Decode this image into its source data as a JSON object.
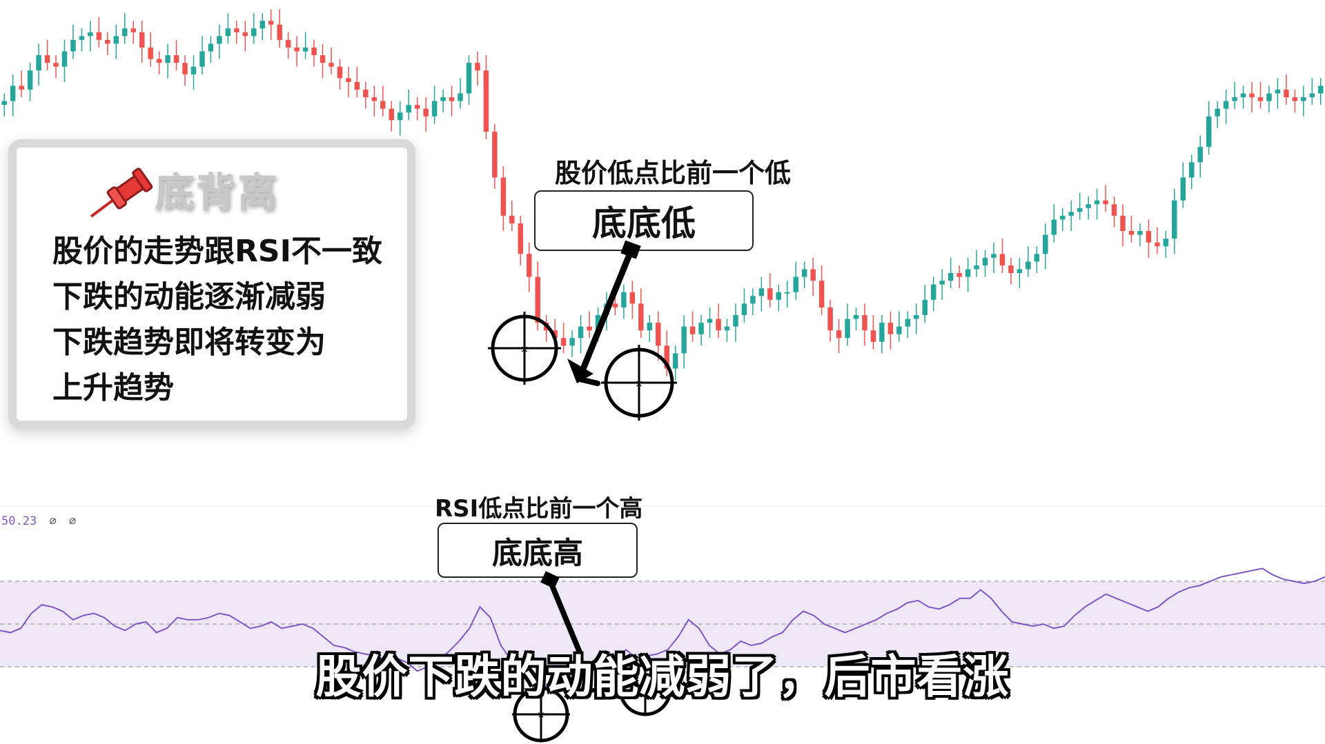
{
  "card": {
    "title": "底背离",
    "lines": [
      "股价的走势跟RSI不一致",
      "下跌的动能逐渐减弱",
      "下跌趋势即将转变为",
      "上升趋势"
    ]
  },
  "price_annotation": {
    "label": "股价低点比前一个低",
    "box": "底底低"
  },
  "rsi_annotation": {
    "label": "RSI低点比前一个高",
    "box": "底底高"
  },
  "rsi_readout": {
    "value": "50.23",
    "na1": "∅",
    "na2": "∅"
  },
  "subtitle": "股价下跌的动能减弱了，后市看涨",
  "colors": {
    "up": "#26a69a",
    "down": "#ef5350",
    "rsi_line": "#7e57c2",
    "rsi_band": "#ede7f6"
  },
  "chart_data": [
    {
      "type": "candlestick",
      "title": "",
      "xlabel": "",
      "ylabel": "",
      "close": [
        100,
        104,
        103,
        108,
        112,
        110,
        109,
        113,
        116,
        117,
        118,
        116,
        115,
        117,
        119,
        118,
        114,
        111,
        110,
        112,
        110,
        107,
        109,
        113,
        115,
        117,
        119,
        118,
        117,
        119,
        121,
        120,
        116,
        114,
        113,
        114,
        112,
        110,
        109,
        106,
        105,
        103,
        101,
        100,
        98,
        95,
        97,
        99,
        98,
        96,
        100,
        101,
        100,
        102,
        110,
        108,
        92,
        80,
        70,
        68,
        60,
        54,
        42,
        40,
        38,
        36,
        38,
        41,
        40,
        44,
        47,
        46,
        50,
        47,
        40,
        42,
        36,
        30,
        34,
        41,
        39,
        42,
        43,
        40,
        41,
        44,
        47,
        49,
        51,
        48,
        50,
        50,
        54,
        56,
        53,
        46,
        40,
        38,
        43,
        44,
        40,
        37,
        42,
        39,
        41,
        43,
        44,
        48,
        52,
        53,
        55,
        54,
        56,
        57,
        59,
        60,
        57,
        55,
        56,
        58,
        60,
        65,
        69,
        70,
        71,
        72,
        73,
        74,
        73,
        70,
        66,
        65,
        66,
        63,
        62,
        64,
        74,
        80,
        84,
        88,
        96,
        98,
        100,
        101,
        102,
        101,
        100,
        102,
        103,
        101,
        100,
        101,
        102,
        104
      ],
      "note": "approximate price path read from the candlesticks; the subtitle and annotations mark a lower low in price near the second circled candle"
    },
    {
      "type": "line",
      "series": [
        {
          "values": [
            47,
            46,
            48,
            55,
            59,
            58,
            56,
            52,
            54,
            55,
            53,
            49,
            47,
            50,
            51,
            46,
            48,
            53,
            52,
            52,
            53,
            55,
            54,
            51,
            48,
            49,
            51,
            48,
            49,
            50,
            48,
            44,
            40,
            39,
            37,
            36,
            35,
            33,
            34,
            32,
            28,
            30,
            33,
            37,
            42,
            48,
            58,
            53,
            40,
            33,
            27,
            24,
            20,
            23,
            30,
            31,
            32,
            30,
            28,
            33,
            38,
            34,
            35,
            36,
            38,
            44,
            52,
            48,
            40,
            36,
            38,
            42,
            40,
            41,
            44,
            46,
            52,
            56,
            54,
            50,
            48,
            46,
            48,
            50,
            52,
            55,
            57,
            60,
            61,
            58,
            57,
            59,
            62,
            62,
            66,
            62,
            56,
            51,
            50,
            49,
            50,
            48,
            49,
            54,
            58,
            61,
            64,
            62,
            60,
            58,
            56,
            58,
            62,
            65,
            67,
            68,
            70,
            72,
            73,
            74,
            75,
            76,
            73,
            71,
            70,
            69,
            70,
            72
          ]
        }
      ],
      "ylim": [
        0,
        100
      ],
      "bands": [
        30,
        50,
        70
      ],
      "readout": "50.23"
    }
  ]
}
